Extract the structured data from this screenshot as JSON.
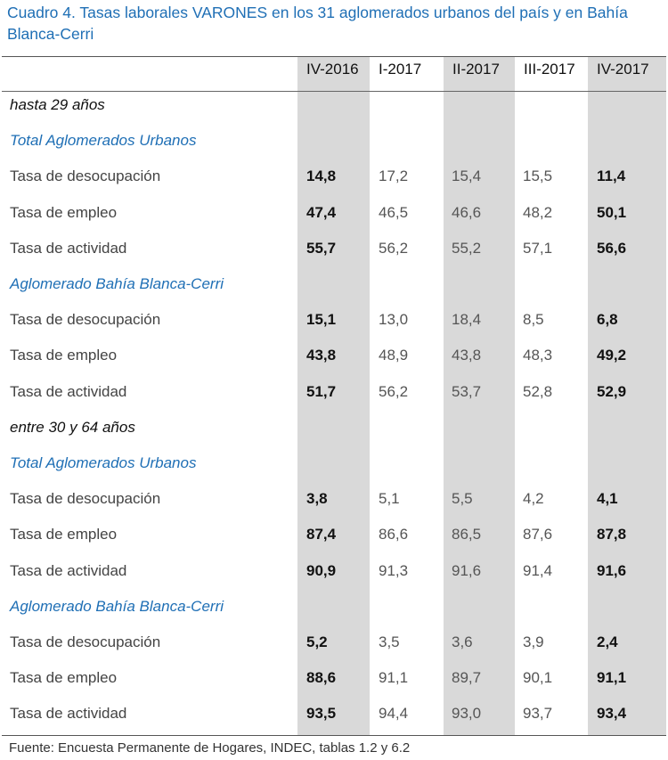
{
  "title": "Cuadro 4. Tasas laborales VARONES en los 31 aglomerados urbanos del país y en Bahía Blanca-Cerri",
  "columns": [
    "IV-2016",
    "I-2017",
    "II-2017",
    "III-2017",
    "IV-2017"
  ],
  "rows": [
    {
      "type": "group",
      "label": "hasta 29 años"
    },
    {
      "type": "section",
      "label": "Total Aglomerados Urbanos"
    },
    {
      "type": "data",
      "label": "Tasa de desocupación",
      "values": [
        "14,8",
        "17,2",
        "15,4",
        "15,5",
        "11,4"
      ]
    },
    {
      "type": "data",
      "label": "Tasa de empleo",
      "values": [
        "47,4",
        "46,5",
        "46,6",
        "48,2",
        "50,1"
      ]
    },
    {
      "type": "data",
      "label": "Tasa de actividad",
      "values": [
        "55,7",
        "56,2",
        "55,2",
        "57,1",
        "56,6"
      ]
    },
    {
      "type": "section",
      "label": "Aglomerado Bahía Blanca-Cerri"
    },
    {
      "type": "data",
      "label": "Tasa de desocupación",
      "values": [
        "15,1",
        "13,0",
        "18,4",
        "8,5",
        "6,8"
      ]
    },
    {
      "type": "data",
      "label": "Tasa de empleo",
      "values": [
        "43,8",
        "48,9",
        "43,8",
        "48,3",
        "49,2"
      ]
    },
    {
      "type": "data",
      "label": "Tasa de actividad",
      "values": [
        "51,7",
        "56,2",
        "53,7",
        "52,8",
        "52,9"
      ]
    },
    {
      "type": "group",
      "label": "entre 30 y 64 años"
    },
    {
      "type": "section",
      "label": "Total Aglomerados Urbanos"
    },
    {
      "type": "data",
      "label": "Tasa de desocupación",
      "values": [
        "3,8",
        "5,1",
        "5,5",
        "4,2",
        "4,1"
      ]
    },
    {
      "type": "data",
      "label": "Tasa de empleo",
      "values": [
        "87,4",
        "86,6",
        "86,5",
        "87,6",
        "87,8"
      ]
    },
    {
      "type": "data",
      "label": "Tasa de actividad",
      "values": [
        "90,9",
        "91,3",
        "91,6",
        "91,4",
        "91,6"
      ]
    },
    {
      "type": "section",
      "label": "Aglomerado Bahía Blanca-Cerri"
    },
    {
      "type": "data",
      "label": "Tasa de desocupación",
      "values": [
        "5,2",
        "3,5",
        "3,6",
        "3,9",
        "2,4"
      ]
    },
    {
      "type": "data",
      "label": "Tasa de empleo",
      "values": [
        "88,6",
        "91,1",
        "89,7",
        "90,1",
        "91,1"
      ]
    },
    {
      "type": "data",
      "label": "Tasa de actividad",
      "values": [
        "93,5",
        "94,4",
        "93,0",
        "93,7",
        "93,4"
      ]
    }
  ],
  "source": "Fuente: Encuesta Permanente de Hogares, INDEC, tablas 1.2 y 6.2"
}
